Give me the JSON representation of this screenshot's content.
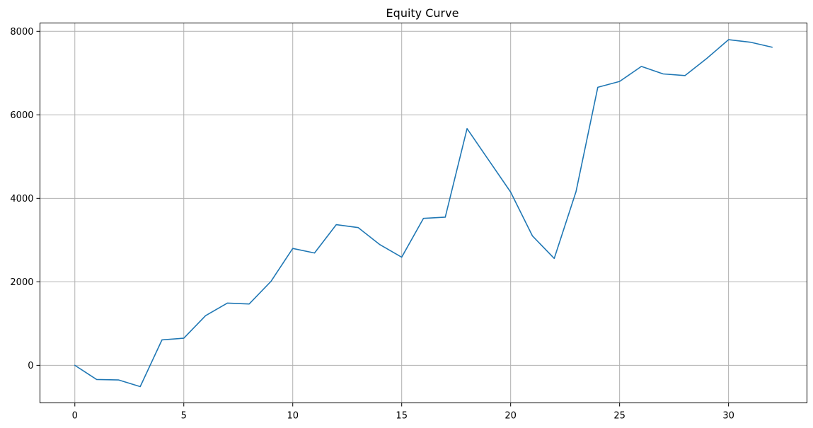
{
  "chart_data": {
    "type": "line",
    "title": "Equity Curve",
    "xlabel": "",
    "ylabel": "",
    "xlim": [
      -1.6,
      33.6
    ],
    "ylim": [
      -900,
      8200
    ],
    "x_ticks": [
      0,
      5,
      10,
      15,
      20,
      25,
      30
    ],
    "y_ticks": [
      0,
      2000,
      4000,
      6000,
      8000
    ],
    "grid": true,
    "series": [
      {
        "color": "#1f77b4",
        "x": [
          0,
          1,
          2,
          3,
          4,
          5,
          6,
          7,
          8,
          9,
          10,
          11,
          12,
          13,
          14,
          15,
          16,
          17,
          18,
          19,
          20,
          21,
          22,
          23,
          24,
          25,
          26,
          27,
          28,
          29,
          30,
          31,
          32
        ],
        "y": [
          0,
          -340,
          -350,
          -510,
          610,
          650,
          1190,
          1490,
          1470,
          2010,
          2800,
          2690,
          3370,
          3300,
          2890,
          2590,
          3520,
          3550,
          5670,
          4910,
          4150,
          3100,
          2560,
          4160,
          6660,
          6800,
          7160,
          6980,
          6940,
          7350,
          7800,
          7740,
          7620
        ]
      }
    ]
  }
}
